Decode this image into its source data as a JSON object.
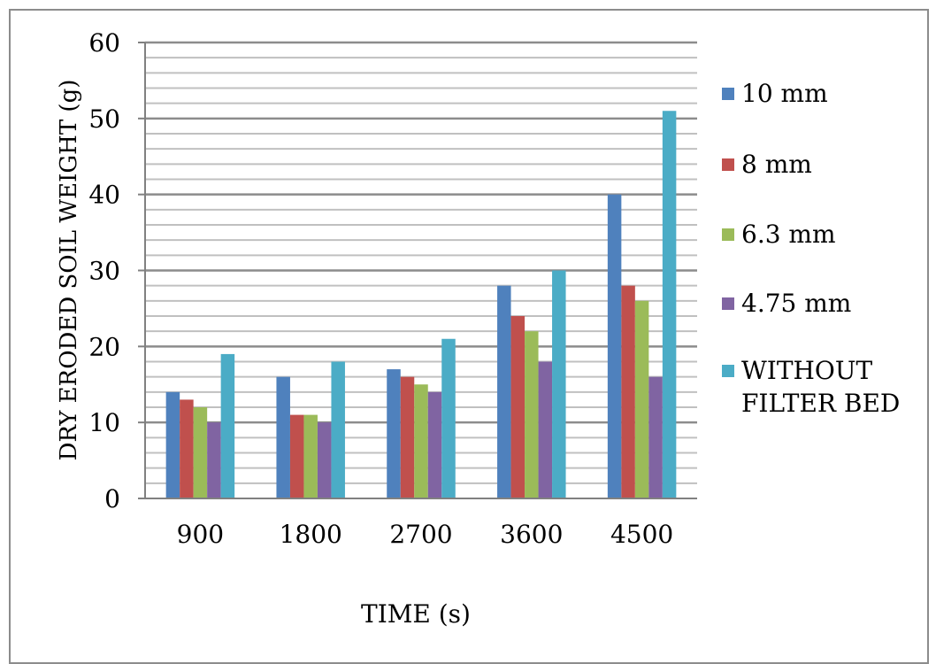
{
  "chart_data": {
    "type": "bar",
    "xlabel": "TIME (s)",
    "ylabel": "DRY ERODED SOIL WEIGHT (g)",
    "categories": [
      "900",
      "1800",
      "2700",
      "3600",
      "4500"
    ],
    "ylim": [
      0,
      60
    ],
    "y_major_ticks": [
      0,
      10,
      20,
      30,
      40,
      50,
      60
    ],
    "y_minor_step": 2,
    "grid": true,
    "legend_position": "right",
    "series": [
      {
        "name": "10 mm",
        "color": "#4f81bd",
        "values": [
          14,
          16,
          17,
          28,
          40
        ]
      },
      {
        "name": "8 mm",
        "color": "#c0504d",
        "values": [
          13,
          11,
          16,
          24,
          28
        ]
      },
      {
        "name": "6.3 mm",
        "color": "#9bbb59",
        "values": [
          12,
          11,
          15,
          22,
          26
        ]
      },
      {
        "name": "4.75 mm",
        "color": "#8064a2",
        "values": [
          10,
          10,
          14,
          18,
          16
        ]
      },
      {
        "name": "WITHOUT FILTER BED",
        "legend_lines": [
          "WITHOUT",
          "FILTER BED"
        ],
        "color": "#4bacc6",
        "values": [
          19,
          18,
          21,
          30,
          51
        ]
      }
    ]
  }
}
